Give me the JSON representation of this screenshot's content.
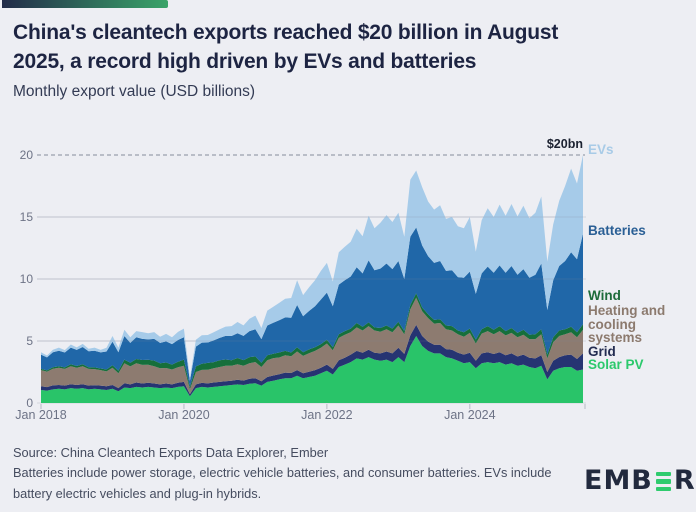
{
  "page": {
    "background": "#edeef3"
  },
  "accent_bar": {
    "color_from": "#222b49",
    "color_to": "#3aa469"
  },
  "header": {
    "title_line1": "China's cleantech exports reached $20 billion in August",
    "title_line2": "2025, a record high driven by EVs and batteries",
    "subtitle": "Monthly export value (USD billions)"
  },
  "chart_data": {
    "type": "area",
    "stacked": true,
    "title": "China's cleantech exports, monthly export value (USD billions)",
    "x_axis": {
      "start": "Jan 2018",
      "end": "Aug 2025",
      "months_total": 92,
      "tick_labels": [
        "Jan 2018",
        "Jan 2020",
        "Jan 2022",
        "Jan 2024"
      ],
      "tick_month_indices": [
        0,
        24,
        48,
        72
      ]
    },
    "y_axis": {
      "ticks": [
        0,
        5,
        10,
        15,
        20
      ],
      "min": 0,
      "max": 20,
      "gridline_dashed_at": 20
    },
    "annotation": {
      "text": "$20bn",
      "month": "Aug 2025",
      "value": 20
    },
    "legend_position": "right",
    "grid": true,
    "series": [
      {
        "name": "Solar PV",
        "color": "#29c469",
        "label_color": "#2bc96c",
        "values": [
          1.05,
          1.0,
          1.1,
          1.15,
          1.1,
          1.2,
          1.15,
          1.2,
          1.1,
          1.15,
          1.1,
          1.05,
          1.15,
          0.95,
          1.25,
          1.2,
          1.3,
          1.25,
          1.3,
          1.25,
          1.2,
          1.25,
          1.2,
          1.3,
          1.35,
          0.55,
          1.2,
          1.3,
          1.25,
          1.3,
          1.35,
          1.4,
          1.45,
          1.5,
          1.45,
          1.55,
          1.6,
          1.4,
          1.7,
          1.8,
          1.9,
          2.0,
          2.0,
          2.2,
          2.0,
          2.1,
          2.2,
          2.4,
          2.6,
          2.3,
          2.9,
          3.1,
          3.3,
          3.6,
          3.5,
          3.7,
          3.5,
          3.4,
          3.5,
          3.3,
          3.7,
          3.3,
          4.6,
          5.4,
          4.6,
          4.2,
          4.0,
          4.0,
          3.7,
          3.6,
          3.4,
          3.2,
          3.3,
          2.8,
          3.2,
          3.3,
          3.2,
          3.3,
          3.1,
          3.2,
          3.0,
          3.1,
          2.9,
          2.8,
          3.0,
          1.9,
          2.6,
          2.8,
          2.9,
          2.9,
          2.6,
          2.7
        ]
      },
      {
        "name": "Grid",
        "color": "#263472",
        "label_color": "#232c51",
        "values": [
          0.3,
          0.28,
          0.32,
          0.3,
          0.3,
          0.32,
          0.3,
          0.32,
          0.3,
          0.28,
          0.3,
          0.3,
          0.3,
          0.25,
          0.35,
          0.3,
          0.35,
          0.32,
          0.33,
          0.32,
          0.3,
          0.32,
          0.3,
          0.33,
          0.35,
          0.15,
          0.3,
          0.32,
          0.33,
          0.35,
          0.35,
          0.36,
          0.35,
          0.38,
          0.36,
          0.4,
          0.4,
          0.35,
          0.4,
          0.42,
          0.42,
          0.45,
          0.42,
          0.45,
          0.4,
          0.42,
          0.45,
          0.45,
          0.5,
          0.45,
          0.55,
          0.55,
          0.6,
          0.6,
          0.55,
          0.6,
          0.55,
          0.6,
          0.65,
          0.7,
          0.75,
          0.65,
          0.85,
          0.9,
          0.8,
          0.75,
          0.7,
          0.7,
          0.65,
          0.7,
          0.65,
          0.7,
          0.75,
          0.6,
          0.8,
          0.8,
          0.75,
          0.8,
          0.75,
          0.8,
          0.75,
          0.8,
          0.75,
          0.8,
          0.85,
          0.6,
          0.8,
          0.9,
          0.95,
          1.0,
          0.95,
          1.3
        ]
      },
      {
        "name": "Heating and cooling systems",
        "color": "#8d7b70",
        "label_color": "#8c7a6e",
        "values": [
          1.3,
          1.25,
          1.35,
          1.4,
          1.35,
          1.45,
          1.4,
          1.45,
          1.35,
          1.3,
          1.25,
          1.2,
          1.4,
          1.2,
          1.6,
          1.45,
          1.55,
          1.5,
          1.45,
          1.4,
          1.3,
          1.25,
          1.2,
          1.25,
          1.3,
          0.4,
          1.0,
          1.05,
          1.1,
          1.15,
          1.2,
          1.25,
          1.2,
          1.25,
          1.2,
          1.25,
          1.3,
          1.15,
          1.35,
          1.4,
          1.35,
          1.4,
          1.35,
          1.5,
          1.4,
          1.5,
          1.55,
          1.6,
          1.7,
          1.5,
          1.8,
          1.85,
          1.8,
          1.9,
          1.8,
          1.9,
          1.8,
          1.75,
          1.8,
          1.7,
          1.8,
          1.6,
          2.1,
          2.2,
          2.0,
          1.9,
          1.7,
          1.75,
          1.6,
          1.55,
          1.5,
          1.45,
          1.6,
          1.4,
          1.6,
          1.7,
          1.6,
          1.7,
          1.6,
          1.65,
          1.55,
          1.6,
          1.5,
          1.55,
          1.7,
          1.1,
          1.5,
          1.7,
          1.7,
          1.8,
          1.75,
          1.9
        ]
      },
      {
        "name": "Wind",
        "color": "#166f3b",
        "label_color": "#1d6b3a",
        "values": [
          0.1,
          0.1,
          0.12,
          0.12,
          0.12,
          0.15,
          0.13,
          0.15,
          0.13,
          0.14,
          0.13,
          0.15,
          0.2,
          0.2,
          0.3,
          0.3,
          0.35,
          0.4,
          0.4,
          0.45,
          0.4,
          0.45,
          0.4,
          0.45,
          0.5,
          0.2,
          0.45,
          0.5,
          0.55,
          0.5,
          0.55,
          0.5,
          0.45,
          0.5,
          0.45,
          0.5,
          0.45,
          0.35,
          0.4,
          0.35,
          0.4,
          0.35,
          0.3,
          0.35,
          0.3,
          0.3,
          0.3,
          0.3,
          0.3,
          0.25,
          0.3,
          0.3,
          0.3,
          0.35,
          0.3,
          0.3,
          0.25,
          0.3,
          0.3,
          0.3,
          0.3,
          0.25,
          0.35,
          0.35,
          0.3,
          0.3,
          0.3,
          0.3,
          0.3,
          0.35,
          0.3,
          0.35,
          0.35,
          0.3,
          0.35,
          0.4,
          0.35,
          0.4,
          0.35,
          0.4,
          0.35,
          0.4,
          0.35,
          0.4,
          0.4,
          0.3,
          0.4,
          0.45,
          0.4,
          0.45,
          0.4,
          0.45
        ]
      },
      {
        "name": "Batteries",
        "color": "#2067a8",
        "label_color": "#2a5f95",
        "values": [
          1.15,
          1.05,
          1.2,
          1.25,
          1.2,
          1.35,
          1.3,
          1.4,
          1.3,
          1.35,
          1.3,
          1.45,
          1.9,
          1.5,
          1.9,
          1.6,
          1.75,
          1.7,
          1.65,
          1.75,
          1.65,
          1.7,
          1.65,
          1.75,
          1.8,
          0.5,
          1.6,
          1.7,
          1.65,
          1.75,
          1.8,
          1.9,
          1.95,
          2.0,
          1.95,
          2.1,
          2.2,
          1.9,
          2.4,
          2.5,
          2.6,
          2.7,
          2.8,
          3.4,
          2.9,
          3.1,
          3.3,
          3.6,
          3.8,
          3.3,
          4.0,
          4.1,
          4.2,
          4.5,
          4.3,
          5.0,
          4.6,
          4.8,
          5.0,
          4.8,
          4.9,
          4.2,
          5.5,
          5.3,
          5.0,
          4.7,
          4.6,
          4.7,
          4.4,
          4.5,
          4.3,
          4.4,
          4.6,
          3.7,
          4.5,
          4.8,
          4.6,
          4.9,
          4.7,
          5.0,
          4.7,
          4.9,
          4.6,
          4.8,
          5.3,
          3.6,
          4.6,
          5.2,
          5.5,
          6.0,
          5.9,
          7.3
        ]
      },
      {
        "name": "EVs",
        "color": "#a6cbe9",
        "label_color": "#a8cbe7",
        "values": [
          0.2,
          0.15,
          0.2,
          0.25,
          0.2,
          0.25,
          0.2,
          0.25,
          0.2,
          0.25,
          0.2,
          0.3,
          0.45,
          0.35,
          0.5,
          0.45,
          0.5,
          0.55,
          0.5,
          0.55,
          0.5,
          0.6,
          0.55,
          0.65,
          0.7,
          0.25,
          0.55,
          0.6,
          0.6,
          0.65,
          0.7,
          0.75,
          0.8,
          0.9,
          0.85,
          1.0,
          1.1,
          0.9,
          1.2,
          1.3,
          1.4,
          1.5,
          1.6,
          2.0,
          1.7,
          1.9,
          2.1,
          2.3,
          2.4,
          2.0,
          2.6,
          2.7,
          2.8,
          3.1,
          3.0,
          3.6,
          3.4,
          3.7,
          3.9,
          3.8,
          3.9,
          3.4,
          4.6,
          4.6,
          4.7,
          4.4,
          4.3,
          4.5,
          4.2,
          4.3,
          4.1,
          4.0,
          4.4,
          3.4,
          4.3,
          4.7,
          4.5,
          4.9,
          4.6,
          5.0,
          4.7,
          5.1,
          4.8,
          5.0,
          5.4,
          3.9,
          4.5,
          5.25,
          6.05,
          6.75,
          6.1,
          6.35
        ]
      }
    ]
  },
  "footer": {
    "source": "Source: China Cleantech Exports Data Explorer, Ember",
    "note": "Batteries include power storage, electric vehicle batteries, and consumer batteries. EVs include battery electric vehicles and plug-in hybrids."
  },
  "logo": {
    "prefix": "EMB",
    "suffix": "R",
    "bar_color": "#2fcb6e"
  }
}
